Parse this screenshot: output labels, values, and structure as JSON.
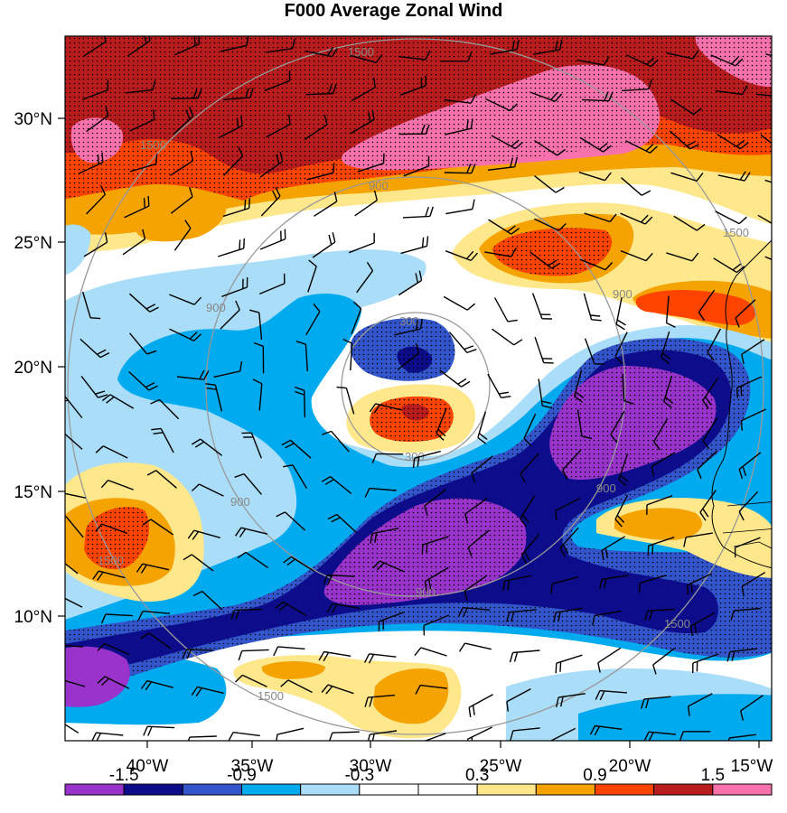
{
  "title": "F000 Average Zonal Wind",
  "map": {
    "lat_labels": [
      "30°N",
      "25°N",
      "20°N",
      "15°N",
      "10°N"
    ],
    "lon_labels": [
      "40°W",
      "35°W",
      "30°W",
      "25°W",
      "20°W",
      "15°W"
    ],
    "ring_labels": [
      {
        "text": "300"
      },
      {
        "text": "300"
      },
      {
        "text": "900"
      },
      {
        "text": "900"
      },
      {
        "text": "900"
      },
      {
        "text": "900"
      },
      {
        "text": "900"
      },
      {
        "text": "900"
      },
      {
        "text": "1500"
      },
      {
        "text": "1500"
      },
      {
        "text": "1500"
      },
      {
        "text": "1500"
      },
      {
        "text": "1500"
      },
      {
        "text": "1500"
      }
    ]
  },
  "colorbar": {
    "colors": [
      "#9933cc",
      "#0d0d8c",
      "#3355cc",
      "#00aaee",
      "#aaddf7",
      "#ffffff",
      "#ffffff",
      "#ffe88c",
      "#f5a300",
      "#ff4400",
      "#b81c1c",
      "#f772ac"
    ],
    "labels": [
      "-1.5",
      "-0.9",
      "-0.3",
      "0.3",
      "0.9",
      "1.5"
    ]
  },
  "colors": {
    "purple": "#9933cc",
    "navy": "#0d0d8c",
    "blue": "#3355cc",
    "cyan": "#00aaee",
    "lightblue": "#aaddf7",
    "yellow": "#ffe88c",
    "orange": "#f5a300",
    "redorange": "#ff4400",
    "darkred": "#b81c1c",
    "pink": "#f772ac"
  }
}
